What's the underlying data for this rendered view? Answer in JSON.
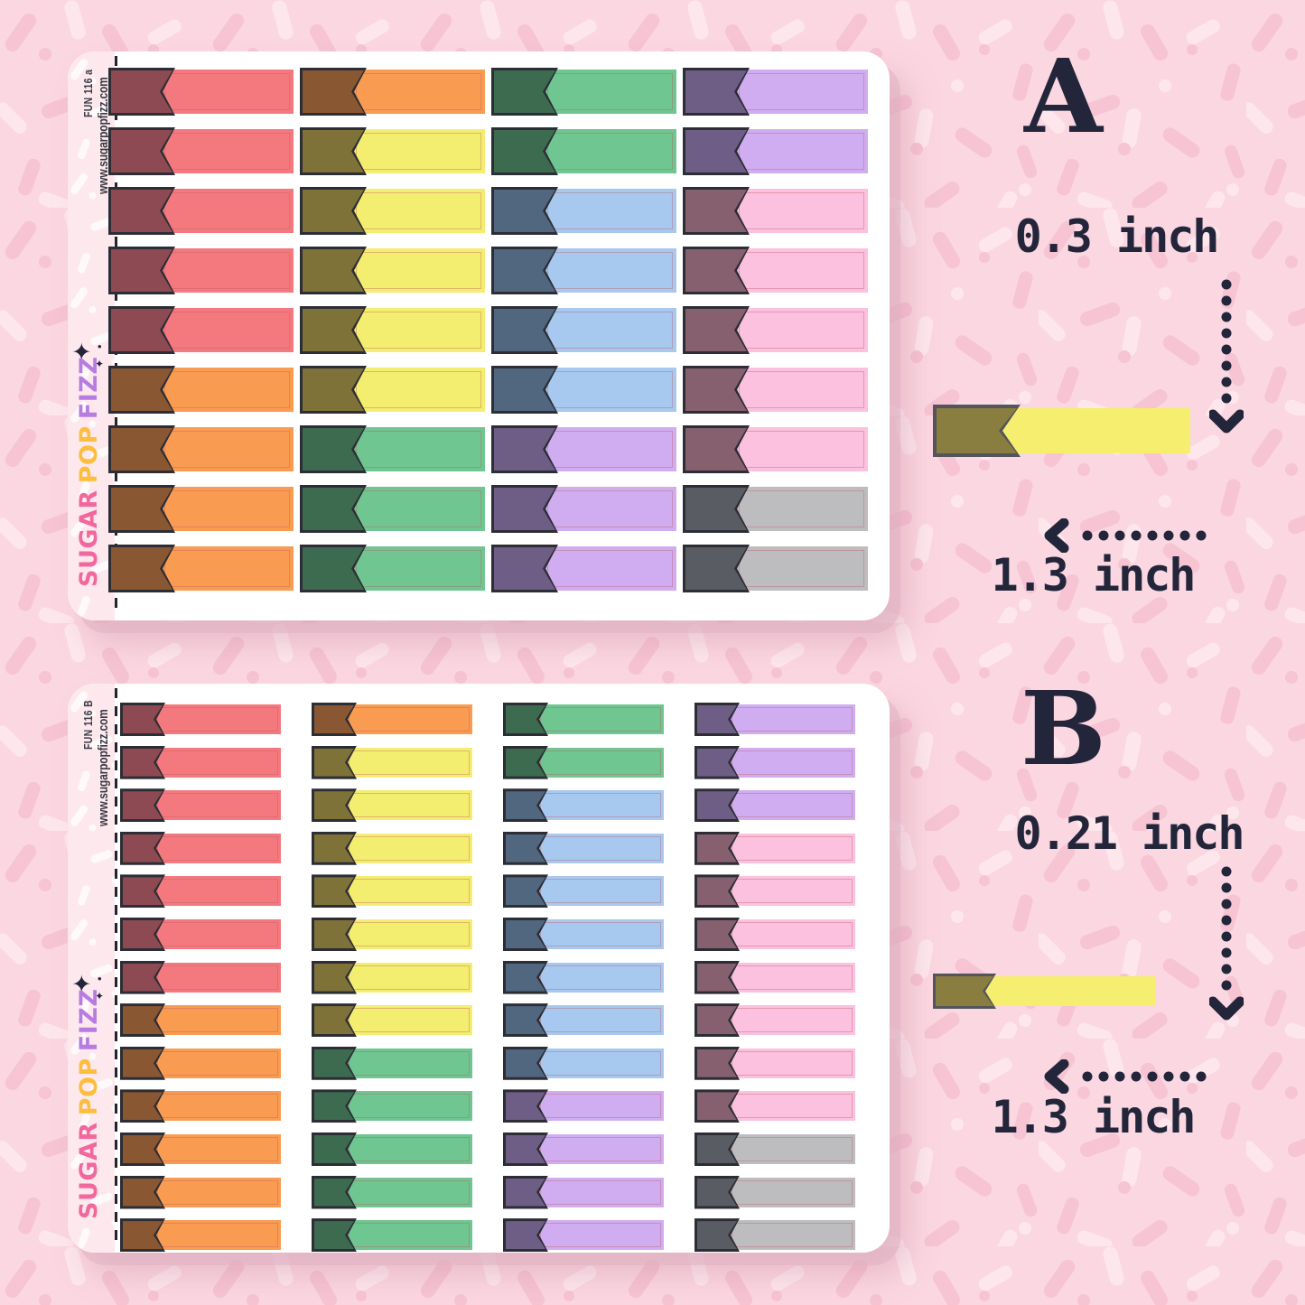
{
  "colors": {
    "background": "#fbd7e1",
    "sprinkle_dark": "#f6c4d3",
    "sprinkle_light": "#fde7ed",
    "strip": "#fde9ed",
    "ink": "#23263a",
    "side_ink": "#3a3b45",
    "sticker_outline": "#2c2d35",
    "body_inner_line": "rgba(190,90,100,0.38)"
  },
  "palette": {
    "coral": {
      "tab": "#8d4a53",
      "body": "#f4797e"
    },
    "orange": {
      "tab": "#8a5733",
      "body": "#f99c52"
    },
    "yellow": {
      "tab": "#7e7239",
      "body": "#f4ee70"
    },
    "green": {
      "tab": "#3d6b50",
      "body": "#6fc690"
    },
    "blue": {
      "tab": "#51667f",
      "body": "#a7c8ef"
    },
    "lavender": {
      "tab": "#6e5e86",
      "body": "#cfadf0"
    },
    "pink": {
      "tab": "#86606f",
      "body": "#fbc1de"
    },
    "gray": {
      "tab": "#5a5c64",
      "body": "#bdbdc0"
    }
  },
  "sample_sticker": {
    "tab": "#8a7d40",
    "tab_border": "#53545c",
    "body": "#f5ee6e"
  },
  "sheets": [
    {
      "code": "FUN 116 a",
      "website": "www.sugarpopfizz.com",
      "sparkle": "✦",
      "sparkle_small": "✦",
      "sparkle_dot": "•",
      "brand": [
        {
          "text": "SUGAR",
          "color": "#f2689e"
        },
        {
          "text": "POP",
          "color": "#fdbe3d"
        },
        {
          "text": "FIZZ",
          "color": "#b77ce2"
        }
      ],
      "grid": [
        [
          "coral",
          "orange",
          "green",
          "lavender"
        ],
        [
          "coral",
          "yellow",
          "green",
          "lavender"
        ],
        [
          "coral",
          "yellow",
          "blue",
          "pink"
        ],
        [
          "coral",
          "yellow",
          "blue",
          "pink"
        ],
        [
          "coral",
          "yellow",
          "blue",
          "pink"
        ],
        [
          "orange",
          "yellow",
          "blue",
          "pink"
        ],
        [
          "orange",
          "green",
          "lavender",
          "pink"
        ],
        [
          "orange",
          "green",
          "lavender",
          "gray"
        ],
        [
          "orange",
          "green",
          "lavender",
          "gray"
        ]
      ]
    },
    {
      "code": "FUN 116 B",
      "website": "www.sugarpopfizz.com",
      "sparkle": "✦",
      "sparkle_small": "✦",
      "sparkle_dot": "•",
      "brand": [
        {
          "text": "SUGAR",
          "color": "#f2689e"
        },
        {
          "text": "POP",
          "color": "#fdbe3d"
        },
        {
          "text": "FIZZ",
          "color": "#b77ce2"
        }
      ],
      "grid": [
        [
          "coral",
          "orange",
          "green",
          "lavender"
        ],
        [
          "coral",
          "yellow",
          "green",
          "lavender"
        ],
        [
          "coral",
          "yellow",
          "blue",
          "lavender"
        ],
        [
          "coral",
          "yellow",
          "blue",
          "pink"
        ],
        [
          "coral",
          "yellow",
          "blue",
          "pink"
        ],
        [
          "coral",
          "yellow",
          "blue",
          "pink"
        ],
        [
          "coral",
          "yellow",
          "blue",
          "pink"
        ],
        [
          "orange",
          "yellow",
          "blue",
          "pink"
        ],
        [
          "orange",
          "green",
          "blue",
          "pink"
        ],
        [
          "orange",
          "green",
          "lavender",
          "pink"
        ],
        [
          "orange",
          "green",
          "lavender",
          "gray"
        ],
        [
          "orange",
          "green",
          "lavender",
          "gray"
        ],
        [
          "orange",
          "green",
          "lavender",
          "gray"
        ]
      ]
    }
  ],
  "annotations": [
    {
      "letter": "A",
      "height_label": "0.3 inch",
      "width_label": "1.3 inch"
    },
    {
      "letter": "B",
      "height_label": "0.21 inch",
      "width_label": "1.3 inch"
    }
  ]
}
